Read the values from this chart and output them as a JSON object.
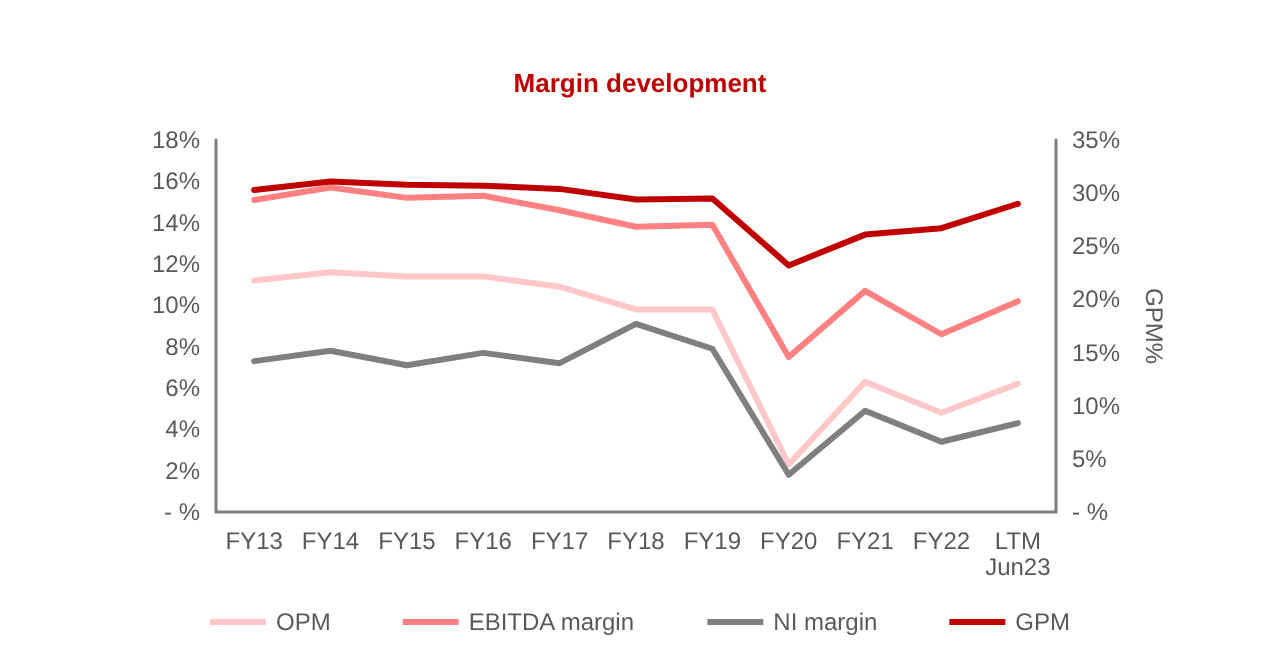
{
  "chart_data": {
    "type": "line",
    "title": "Margin development",
    "y2label": "GPM%",
    "categories": [
      "FY13",
      "FY14",
      "FY15",
      "FY16",
      "FY17",
      "FY18",
      "FY19",
      "FY20",
      "FY21",
      "FY22",
      "LTM\nJun23"
    ],
    "series": [
      {
        "name": "OPM",
        "color": "#ffc7c7",
        "values": [
          11.2,
          11.6,
          11.4,
          11.4,
          10.9,
          9.8,
          9.8,
          2.3,
          6.3,
          4.8,
          6.2
        ]
      },
      {
        "name": "EBITDA margin",
        "color": "#ff8080",
        "values": [
          15.1,
          15.7,
          15.2,
          15.3,
          14.6,
          13.8,
          13.9,
          7.5,
          10.7,
          8.6,
          10.2
        ]
      },
      {
        "name": "NI margin",
        "color": "#7f7f7f",
        "values": [
          7.3,
          7.8,
          7.1,
          7.7,
          7.2,
          9.1,
          7.9,
          1.8,
          4.9,
          3.4,
          4.3
        ]
      },
      {
        "name": "GPM",
        "color": "#c00000",
        "axis": "y2",
        "values": [
          30.3,
          31.1,
          30.8,
          30.7,
          30.4,
          29.4,
          29.5,
          23.2,
          26.1,
          26.7,
          29.0
        ]
      }
    ],
    "ylim": [
      0,
      18
    ],
    "yticks": [
      {
        "value": 0,
        "label": "- %"
      },
      {
        "value": 2,
        "label": "2%"
      },
      {
        "value": 4,
        "label": "4%"
      },
      {
        "value": 6,
        "label": "6%"
      },
      {
        "value": 8,
        "label": "8%"
      },
      {
        "value": 10,
        "label": "10%"
      },
      {
        "value": 12,
        "label": "12%"
      },
      {
        "value": 14,
        "label": "14%"
      },
      {
        "value": 16,
        "label": "16%"
      },
      {
        "value": 18,
        "label": "18%"
      }
    ],
    "y2lim": [
      0,
      35
    ],
    "y2ticks": [
      {
        "value": 0,
        "label": "- %"
      },
      {
        "value": 5,
        "label": "5%"
      },
      {
        "value": 10,
        "label": "10%"
      },
      {
        "value": 15,
        "label": "15%"
      },
      {
        "value": 20,
        "label": "20%"
      },
      {
        "value": 25,
        "label": "25%"
      },
      {
        "value": 30,
        "label": "30%"
      },
      {
        "value": 35,
        "label": "35%"
      }
    ],
    "grid": false,
    "legend": "bottom",
    "marker": "none",
    "line_style": "solid"
  }
}
